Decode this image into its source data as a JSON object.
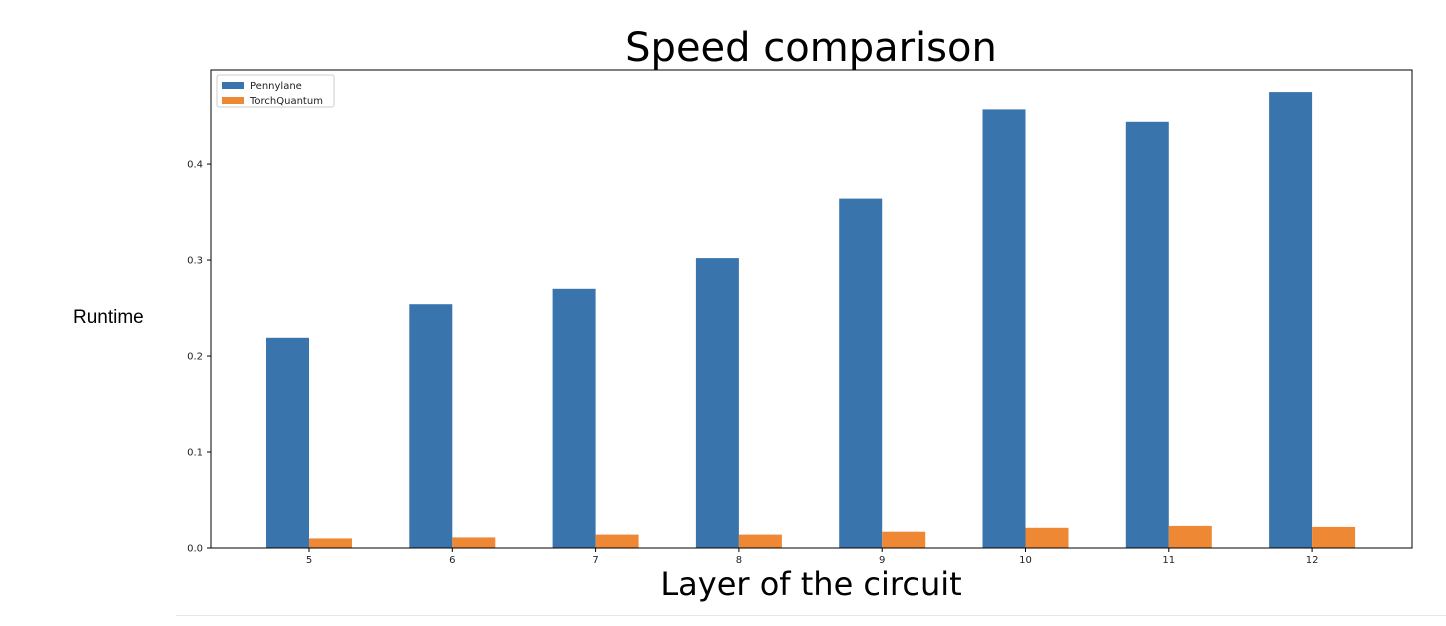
{
  "chart_data": {
    "type": "bar",
    "title": "Speed comparison",
    "xlabel": "Layer of the circuit",
    "ylabel": "Runtime",
    "categories": [
      "5",
      "6",
      "7",
      "8",
      "9",
      "10",
      "11",
      "12"
    ],
    "series": [
      {
        "name": "Pennylane",
        "color": "#3a74ad",
        "values": [
          0.219,
          0.254,
          0.27,
          0.302,
          0.364,
          0.457,
          0.444,
          0.475
        ]
      },
      {
        "name": "TorchQuantum",
        "color": "#ee8835",
        "values": [
          0.01,
          0.011,
          0.014,
          0.014,
          0.017,
          0.021,
          0.023,
          0.022
        ]
      }
    ],
    "ylim": [
      0,
      0.498
    ],
    "yticks": [
      "0.0",
      "0.1",
      "0.2",
      "0.3",
      "0.4"
    ],
    "legend": "top-left",
    "grid": false
  }
}
